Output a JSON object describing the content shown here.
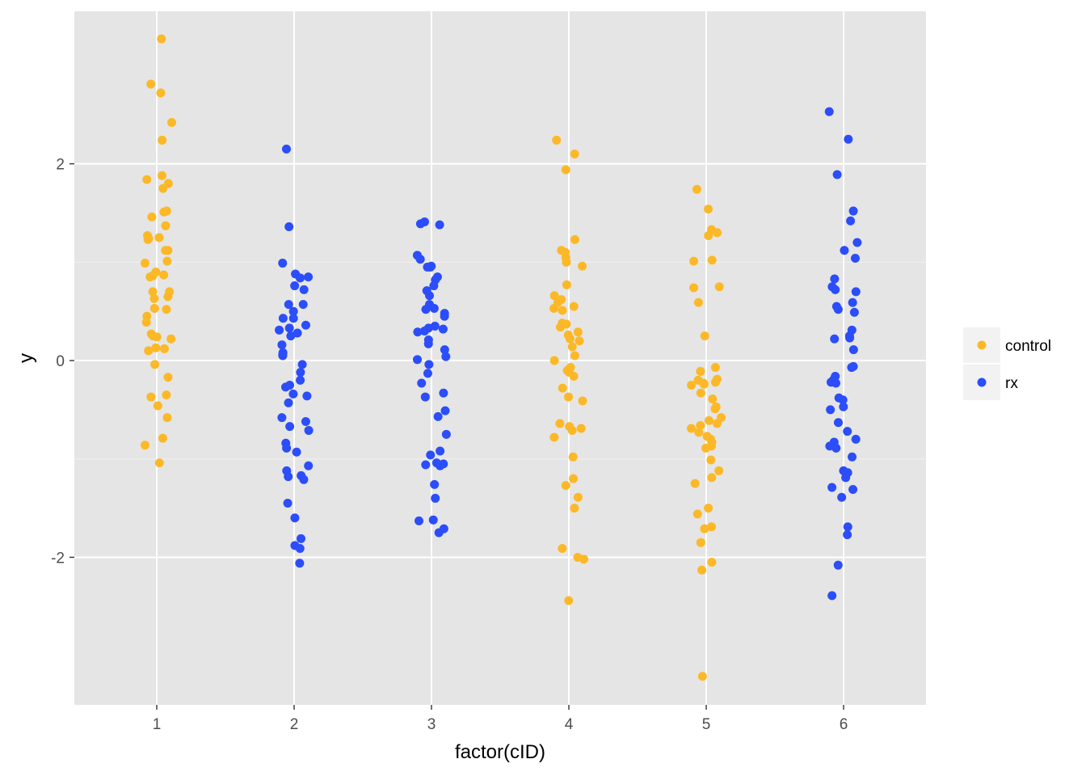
{
  "chart_data": {
    "type": "scatter",
    "xlabel": "factor(cID)",
    "ylabel": "y",
    "categories": [
      "1",
      "2",
      "3",
      "4",
      "5",
      "6"
    ],
    "yticks": [
      -2,
      0,
      2
    ],
    "ytick_labels": [
      "-2",
      "0",
      "2"
    ],
    "ylim": [
      -3.5,
      3.55
    ],
    "grid": true,
    "legend_position": "right",
    "series": [
      {
        "name": "control",
        "color": "#FCB826",
        "points": [
          {
            "x": 1,
            "y": 3.27
          },
          {
            "x": 1,
            "y": 2.81
          },
          {
            "x": 1,
            "y": 2.72
          },
          {
            "x": 1,
            "y": 2.42
          },
          {
            "x": 1,
            "y": 2.24
          },
          {
            "x": 1,
            "y": 1.88
          },
          {
            "x": 1,
            "y": 1.84
          },
          {
            "x": 1,
            "y": 1.8
          },
          {
            "x": 1,
            "y": 1.75
          },
          {
            "x": 1,
            "y": 1.52
          },
          {
            "x": 1,
            "y": 1.51
          },
          {
            "x": 1,
            "y": 1.46
          },
          {
            "x": 1,
            "y": 1.37
          },
          {
            "x": 1,
            "y": 1.27
          },
          {
            "x": 1,
            "y": 1.25
          },
          {
            "x": 1,
            "y": 1.24
          },
          {
            "x": 1,
            "y": 1.23
          },
          {
            "x": 1,
            "y": 1.12
          },
          {
            "x": 1,
            "y": 1.12
          },
          {
            "x": 1,
            "y": 1.01
          },
          {
            "x": 1,
            "y": 0.99
          },
          {
            "x": 1,
            "y": 0.9
          },
          {
            "x": 1,
            "y": 0.87
          },
          {
            "x": 1,
            "y": 0.86
          },
          {
            "x": 1,
            "y": 0.85
          },
          {
            "x": 1,
            "y": 0.7
          },
          {
            "x": 1,
            "y": 0.7
          },
          {
            "x": 1,
            "y": 0.65
          },
          {
            "x": 1,
            "y": 0.63
          },
          {
            "x": 1,
            "y": 0.53
          },
          {
            "x": 1,
            "y": 0.52
          },
          {
            "x": 1,
            "y": 0.45
          },
          {
            "x": 1,
            "y": 0.39
          },
          {
            "x": 1,
            "y": 0.27
          },
          {
            "x": 1,
            "y": 0.25
          },
          {
            "x": 1,
            "y": 0.24
          },
          {
            "x": 1,
            "y": 0.22
          },
          {
            "x": 1,
            "y": 0.13
          },
          {
            "x": 1,
            "y": 0.12
          },
          {
            "x": 1,
            "y": 0.1
          },
          {
            "x": 1,
            "y": -0.04
          },
          {
            "x": 1,
            "y": -0.17
          },
          {
            "x": 1,
            "y": -0.35
          },
          {
            "x": 1,
            "y": -0.37
          },
          {
            "x": 1,
            "y": -0.46
          },
          {
            "x": 1,
            "y": -0.58
          },
          {
            "x": 1,
            "y": -0.79
          },
          {
            "x": 1,
            "y": -0.86
          },
          {
            "x": 1,
            "y": -1.04
          },
          {
            "x": 4,
            "y": 2.24
          },
          {
            "x": 4,
            "y": 2.1
          },
          {
            "x": 4,
            "y": 1.94
          },
          {
            "x": 4,
            "y": 1.23
          },
          {
            "x": 4,
            "y": 1.12
          },
          {
            "x": 4,
            "y": 1.1
          },
          {
            "x": 4,
            "y": 1.05
          },
          {
            "x": 4,
            "y": 1.0
          },
          {
            "x": 4,
            "y": 0.96
          },
          {
            "x": 4,
            "y": 0.77
          },
          {
            "x": 4,
            "y": 0.66
          },
          {
            "x": 4,
            "y": 0.62
          },
          {
            "x": 4,
            "y": 0.59
          },
          {
            "x": 4,
            "y": 0.55
          },
          {
            "x": 4,
            "y": 0.53
          },
          {
            "x": 4,
            "y": 0.51
          },
          {
            "x": 4,
            "y": 0.38
          },
          {
            "x": 4,
            "y": 0.37
          },
          {
            "x": 4,
            "y": 0.34
          },
          {
            "x": 4,
            "y": 0.29
          },
          {
            "x": 4,
            "y": 0.26
          },
          {
            "x": 4,
            "y": 0.22
          },
          {
            "x": 4,
            "y": 0.2
          },
          {
            "x": 4,
            "y": 0.14
          },
          {
            "x": 4,
            "y": 0.05
          },
          {
            "x": 4,
            "y": 0.0
          },
          {
            "x": 4,
            "y": -0.07
          },
          {
            "x": 4,
            "y": -0.1
          },
          {
            "x": 4,
            "y": -0.12
          },
          {
            "x": 4,
            "y": -0.16
          },
          {
            "x": 4,
            "y": -0.28
          },
          {
            "x": 4,
            "y": -0.37
          },
          {
            "x": 4,
            "y": -0.41
          },
          {
            "x": 4,
            "y": -0.64
          },
          {
            "x": 4,
            "y": -0.67
          },
          {
            "x": 4,
            "y": -0.69
          },
          {
            "x": 4,
            "y": -0.71
          },
          {
            "x": 4,
            "y": -0.78
          },
          {
            "x": 4,
            "y": -0.98
          },
          {
            "x": 4,
            "y": -1.2
          },
          {
            "x": 4,
            "y": -1.27
          },
          {
            "x": 4,
            "y": -1.39
          },
          {
            "x": 4,
            "y": -1.5
          },
          {
            "x": 4,
            "y": -1.91
          },
          {
            "x": 4,
            "y": -2.0
          },
          {
            "x": 4,
            "y": -2.02
          },
          {
            "x": 4,
            "y": -2.44
          },
          {
            "x": 5,
            "y": 1.74
          },
          {
            "x": 5,
            "y": 1.54
          },
          {
            "x": 5,
            "y": 1.33
          },
          {
            "x": 5,
            "y": 1.3
          },
          {
            "x": 5,
            "y": 1.27
          },
          {
            "x": 5,
            "y": 1.02
          },
          {
            "x": 5,
            "y": 1.01
          },
          {
            "x": 5,
            "y": 0.75
          },
          {
            "x": 5,
            "y": 0.74
          },
          {
            "x": 5,
            "y": 0.59
          },
          {
            "x": 5,
            "y": 0.25
          },
          {
            "x": 5,
            "y": -0.07
          },
          {
            "x": 5,
            "y": -0.11
          },
          {
            "x": 5,
            "y": -0.19
          },
          {
            "x": 5,
            "y": -0.2
          },
          {
            "x": 5,
            "y": -0.22
          },
          {
            "x": 5,
            "y": -0.23
          },
          {
            "x": 5,
            "y": -0.24
          },
          {
            "x": 5,
            "y": -0.25
          },
          {
            "x": 5,
            "y": -0.33
          },
          {
            "x": 5,
            "y": -0.39
          },
          {
            "x": 5,
            "y": -0.47
          },
          {
            "x": 5,
            "y": -0.49
          },
          {
            "x": 5,
            "y": -0.58
          },
          {
            "x": 5,
            "y": -0.61
          },
          {
            "x": 5,
            "y": -0.64
          },
          {
            "x": 5,
            "y": -0.66
          },
          {
            "x": 5,
            "y": -0.69
          },
          {
            "x": 5,
            "y": -0.73
          },
          {
            "x": 5,
            "y": -0.77
          },
          {
            "x": 5,
            "y": -0.8
          },
          {
            "x": 5,
            "y": -0.83
          },
          {
            "x": 5,
            "y": -0.87
          },
          {
            "x": 5,
            "y": -0.89
          },
          {
            "x": 5,
            "y": -1.01
          },
          {
            "x": 5,
            "y": -1.12
          },
          {
            "x": 5,
            "y": -1.19
          },
          {
            "x": 5,
            "y": -1.25
          },
          {
            "x": 5,
            "y": -1.5
          },
          {
            "x": 5,
            "y": -1.56
          },
          {
            "x": 5,
            "y": -1.69
          },
          {
            "x": 5,
            "y": -1.71
          },
          {
            "x": 5,
            "y": -1.85
          },
          {
            "x": 5,
            "y": -2.05
          },
          {
            "x": 5,
            "y": -2.13
          },
          {
            "x": 5,
            "y": -3.21
          }
        ]
      },
      {
        "name": "rx",
        "color": "#2B4DFA",
        "points": [
          {
            "x": 2,
            "y": 2.15
          },
          {
            "x": 2,
            "y": 1.36
          },
          {
            "x": 2,
            "y": 0.99
          },
          {
            "x": 2,
            "y": 0.88
          },
          {
            "x": 2,
            "y": 0.85
          },
          {
            "x": 2,
            "y": 0.84
          },
          {
            "x": 2,
            "y": 0.76
          },
          {
            "x": 2,
            "y": 0.72
          },
          {
            "x": 2,
            "y": 0.57
          },
          {
            "x": 2,
            "y": 0.57
          },
          {
            "x": 2,
            "y": 0.5
          },
          {
            "x": 2,
            "y": 0.43
          },
          {
            "x": 2,
            "y": 0.43
          },
          {
            "x": 2,
            "y": 0.36
          },
          {
            "x": 2,
            "y": 0.33
          },
          {
            "x": 2,
            "y": 0.31
          },
          {
            "x": 2,
            "y": 0.28
          },
          {
            "x": 2,
            "y": 0.25
          },
          {
            "x": 2,
            "y": 0.16
          },
          {
            "x": 2,
            "y": 0.08
          },
          {
            "x": 2,
            "y": 0.06
          },
          {
            "x": 2,
            "y": 0.05
          },
          {
            "x": 2,
            "y": -0.04
          },
          {
            "x": 2,
            "y": -0.12
          },
          {
            "x": 2,
            "y": -0.2
          },
          {
            "x": 2,
            "y": -0.25
          },
          {
            "x": 2,
            "y": -0.27
          },
          {
            "x": 2,
            "y": -0.34
          },
          {
            "x": 2,
            "y": -0.36
          },
          {
            "x": 2,
            "y": -0.43
          },
          {
            "x": 2,
            "y": -0.58
          },
          {
            "x": 2,
            "y": -0.62
          },
          {
            "x": 2,
            "y": -0.67
          },
          {
            "x": 2,
            "y": -0.71
          },
          {
            "x": 2,
            "y": -0.84
          },
          {
            "x": 2,
            "y": -0.89
          },
          {
            "x": 2,
            "y": -0.93
          },
          {
            "x": 2,
            "y": -1.07
          },
          {
            "x": 2,
            "y": -1.12
          },
          {
            "x": 2,
            "y": -1.17
          },
          {
            "x": 2,
            "y": -1.18
          },
          {
            "x": 2,
            "y": -1.21
          },
          {
            "x": 2,
            "y": -1.45
          },
          {
            "x": 2,
            "y": -1.6
          },
          {
            "x": 2,
            "y": -1.81
          },
          {
            "x": 2,
            "y": -1.88
          },
          {
            "x": 2,
            "y": -1.91
          },
          {
            "x": 2,
            "y": -2.06
          },
          {
            "x": 3,
            "y": 1.41
          },
          {
            "x": 3,
            "y": 1.39
          },
          {
            "x": 3,
            "y": 1.38
          },
          {
            "x": 3,
            "y": 1.07
          },
          {
            "x": 3,
            "y": 1.03
          },
          {
            "x": 3,
            "y": 0.96
          },
          {
            "x": 3,
            "y": 0.95
          },
          {
            "x": 3,
            "y": 0.95
          },
          {
            "x": 3,
            "y": 0.85
          },
          {
            "x": 3,
            "y": 0.82
          },
          {
            "x": 3,
            "y": 0.76
          },
          {
            "x": 3,
            "y": 0.71
          },
          {
            "x": 3,
            "y": 0.66
          },
          {
            "x": 3,
            "y": 0.57
          },
          {
            "x": 3,
            "y": 0.53
          },
          {
            "x": 3,
            "y": 0.52
          },
          {
            "x": 3,
            "y": 0.48
          },
          {
            "x": 3,
            "y": 0.45
          },
          {
            "x": 3,
            "y": 0.35
          },
          {
            "x": 3,
            "y": 0.33
          },
          {
            "x": 3,
            "y": 0.32
          },
          {
            "x": 3,
            "y": 0.3
          },
          {
            "x": 3,
            "y": 0.29
          },
          {
            "x": 3,
            "y": 0.21
          },
          {
            "x": 3,
            "y": 0.17
          },
          {
            "x": 3,
            "y": 0.11
          },
          {
            "x": 3,
            "y": 0.04
          },
          {
            "x": 3,
            "y": 0.01
          },
          {
            "x": 3,
            "y": -0.04
          },
          {
            "x": 3,
            "y": -0.13
          },
          {
            "x": 3,
            "y": -0.23
          },
          {
            "x": 3,
            "y": -0.33
          },
          {
            "x": 3,
            "y": -0.37
          },
          {
            "x": 3,
            "y": -0.51
          },
          {
            "x": 3,
            "y": -0.57
          },
          {
            "x": 3,
            "y": -0.75
          },
          {
            "x": 3,
            "y": -0.92
          },
          {
            "x": 3,
            "y": -0.96
          },
          {
            "x": 3,
            "y": -1.04
          },
          {
            "x": 3,
            "y": -1.05
          },
          {
            "x": 3,
            "y": -1.06
          },
          {
            "x": 3,
            "y": -1.07
          },
          {
            "x": 3,
            "y": -1.26
          },
          {
            "x": 3,
            "y": -1.4
          },
          {
            "x": 3,
            "y": -1.62
          },
          {
            "x": 3,
            "y": -1.63
          },
          {
            "x": 3,
            "y": -1.71
          },
          {
            "x": 3,
            "y": -1.75
          },
          {
            "x": 6,
            "y": 2.53
          },
          {
            "x": 6,
            "y": 2.25
          },
          {
            "x": 6,
            "y": 1.89
          },
          {
            "x": 6,
            "y": 1.52
          },
          {
            "x": 6,
            "y": 1.42
          },
          {
            "x": 6,
            "y": 1.2
          },
          {
            "x": 6,
            "y": 1.12
          },
          {
            "x": 6,
            "y": 1.04
          },
          {
            "x": 6,
            "y": 0.83
          },
          {
            "x": 6,
            "y": 0.75
          },
          {
            "x": 6,
            "y": 0.72
          },
          {
            "x": 6,
            "y": 0.7
          },
          {
            "x": 6,
            "y": 0.59
          },
          {
            "x": 6,
            "y": 0.55
          },
          {
            "x": 6,
            "y": 0.52
          },
          {
            "x": 6,
            "y": 0.49
          },
          {
            "x": 6,
            "y": 0.31
          },
          {
            "x": 6,
            "y": 0.25
          },
          {
            "x": 6,
            "y": 0.23
          },
          {
            "x": 6,
            "y": 0.22
          },
          {
            "x": 6,
            "y": 0.11
          },
          {
            "x": 6,
            "y": -0.06
          },
          {
            "x": 6,
            "y": -0.07
          },
          {
            "x": 6,
            "y": -0.16
          },
          {
            "x": 6,
            "y": -0.2
          },
          {
            "x": 6,
            "y": -0.22
          },
          {
            "x": 6,
            "y": -0.23
          },
          {
            "x": 6,
            "y": -0.38
          },
          {
            "x": 6,
            "y": -0.4
          },
          {
            "x": 6,
            "y": -0.47
          },
          {
            "x": 6,
            "y": -0.5
          },
          {
            "x": 6,
            "y": -0.63
          },
          {
            "x": 6,
            "y": -0.72
          },
          {
            "x": 6,
            "y": -0.8
          },
          {
            "x": 6,
            "y": -0.83
          },
          {
            "x": 6,
            "y": -0.87
          },
          {
            "x": 6,
            "y": -0.89
          },
          {
            "x": 6,
            "y": -0.98
          },
          {
            "x": 6,
            "y": -1.12
          },
          {
            "x": 6,
            "y": -1.14
          },
          {
            "x": 6,
            "y": -1.19
          },
          {
            "x": 6,
            "y": -1.29
          },
          {
            "x": 6,
            "y": -1.31
          },
          {
            "x": 6,
            "y": -1.39
          },
          {
            "x": 6,
            "y": -1.69
          },
          {
            "x": 6,
            "y": -1.77
          },
          {
            "x": 6,
            "y": -2.08
          },
          {
            "x": 6,
            "y": -2.39
          }
        ]
      }
    ]
  }
}
